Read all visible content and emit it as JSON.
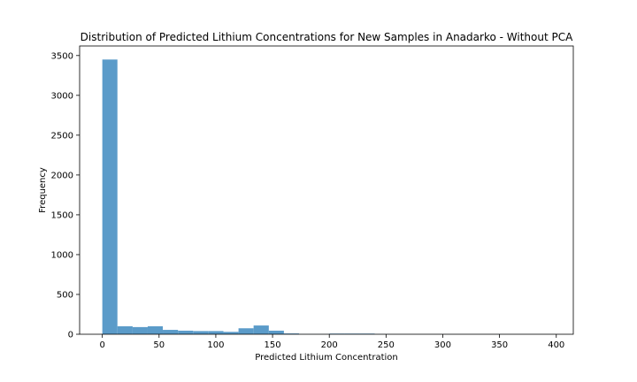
{
  "chart_data": {
    "type": "bar",
    "subtype": "histogram",
    "title": "Distribution of Predicted Lithium Concentrations for New Samples in Anadarko - Without PCA",
    "xlabel": "Predicted Lithium Concentration",
    "ylabel": "Frequency",
    "xlim": [
      -20,
      415
    ],
    "ylim": [
      0,
      3620
    ],
    "xticks": [
      0,
      50,
      100,
      150,
      200,
      250,
      300,
      350,
      400
    ],
    "yticks": [
      0,
      500,
      1000,
      1500,
      2000,
      2500,
      3000,
      3500
    ],
    "grid": false,
    "bar_color": "#5b9bc9",
    "bins": [
      {
        "x0": 0,
        "x1": 13.3,
        "count": 3450
      },
      {
        "x0": 13.3,
        "x1": 26.7,
        "count": 100
      },
      {
        "x0": 26.7,
        "x1": 40.0,
        "count": 90
      },
      {
        "x0": 40.0,
        "x1": 53.3,
        "count": 100
      },
      {
        "x0": 53.3,
        "x1": 66.7,
        "count": 55
      },
      {
        "x0": 66.7,
        "x1": 80.0,
        "count": 45
      },
      {
        "x0": 80.0,
        "x1": 93.3,
        "count": 40
      },
      {
        "x0": 93.3,
        "x1": 106.7,
        "count": 40
      },
      {
        "x0": 106.7,
        "x1": 120.0,
        "count": 30
      },
      {
        "x0": 120.0,
        "x1": 133.3,
        "count": 75
      },
      {
        "x0": 133.3,
        "x1": 146.7,
        "count": 110
      },
      {
        "x0": 146.7,
        "x1": 160.0,
        "count": 45
      },
      {
        "x0": 160.0,
        "x1": 173.3,
        "count": 10
      },
      {
        "x0": 173.3,
        "x1": 186.7,
        "count": 2
      },
      {
        "x0": 186.7,
        "x1": 200.0,
        "count": 2
      },
      {
        "x0": 200.0,
        "x1": 213.3,
        "count": 8
      },
      {
        "x0": 213.3,
        "x1": 226.7,
        "count": 8
      },
      {
        "x0": 226.7,
        "x1": 240.0,
        "count": 8
      },
      {
        "x0": 240.0,
        "x1": 253.3,
        "count": 2
      },
      {
        "x0": 253.3,
        "x1": 266.7,
        "count": 1
      },
      {
        "x0": 266.7,
        "x1": 280.0,
        "count": 1
      },
      {
        "x0": 280.0,
        "x1": 293.3,
        "count": 1
      },
      {
        "x0": 293.3,
        "x1": 306.7,
        "count": 1
      },
      {
        "x0": 306.7,
        "x1": 320.0,
        "count": 1
      },
      {
        "x0": 320.0,
        "x1": 333.3,
        "count": 1
      },
      {
        "x0": 333.3,
        "x1": 346.7,
        "count": 1
      },
      {
        "x0": 346.7,
        "x1": 360.0,
        "count": 1
      },
      {
        "x0": 360.0,
        "x1": 373.3,
        "count": 1
      },
      {
        "x0": 373.3,
        "x1": 386.7,
        "count": 1
      },
      {
        "x0": 386.7,
        "x1": 400.0,
        "count": 1
      }
    ]
  }
}
